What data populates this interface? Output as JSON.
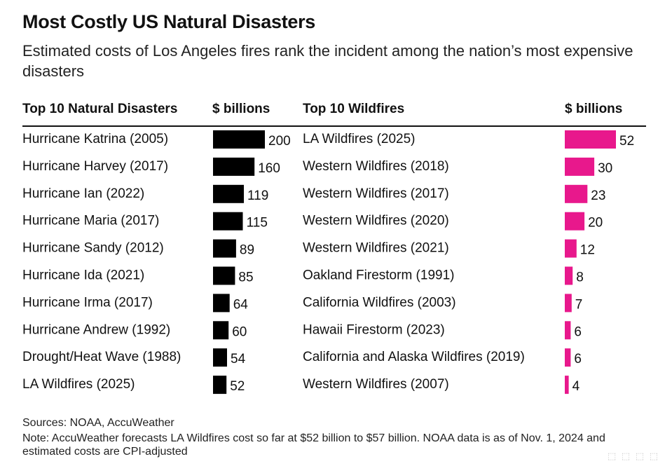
{
  "title": "Most Costly US Natural Disasters",
  "subtitle": "Estimated costs of Los Angeles fires rank the incident among the nation’s most expensive disasters",
  "footer": {
    "sources": "Sources: NOAA, AccuWeather",
    "note": "Note: AccuWeather forecasts LA Wildfires cost so far at $52 billion to $57 billion. NOAA data is as of Nov. 1, 2024 and estimated costs are CPI-adjusted"
  },
  "chart_data": [
    {
      "type": "bar",
      "orientation": "horizontal",
      "category_header": "Top 10 Natural Disasters",
      "value_header": "$ billions",
      "color": "#000000",
      "categories": [
        "Hurricane Katrina (2005)",
        "Hurricane Harvey (2017)",
        "Hurricane Ian (2022)",
        "Hurricane Maria (2017)",
        "Hurricane Sandy (2012)",
        "Hurricane Ida (2021)",
        "Hurricane Irma (2017)",
        "Hurricane Andrew (1992)",
        "Drought/Heat Wave (1988)",
        "LA Wildfires (2025)"
      ],
      "values": [
        200,
        160,
        119,
        115,
        89,
        85,
        64,
        60,
        54,
        52
      ],
      "xlim": [
        0,
        200
      ]
    },
    {
      "type": "bar",
      "orientation": "horizontal",
      "category_header": "Top 10 Wildfires",
      "value_header": "$ billions",
      "color": "#e8188c",
      "categories": [
        "LA Wildfires (2025)",
        "Western Wildfires (2018)",
        "Western Wildfires (2017)",
        "Western Wildfires (2020)",
        "Western Wildfires (2021)",
        "Oakland Firestorm (1991)",
        "California Wildfires (2003)",
        "Hawaii Firestorm (2023)",
        "California and Alaska Wildfires (2019)",
        "Western Wildfires (2007)"
      ],
      "values": [
        52,
        30,
        23,
        20,
        12,
        8,
        7,
        6,
        6,
        4
      ],
      "xlim": [
        0,
        52
      ]
    }
  ]
}
